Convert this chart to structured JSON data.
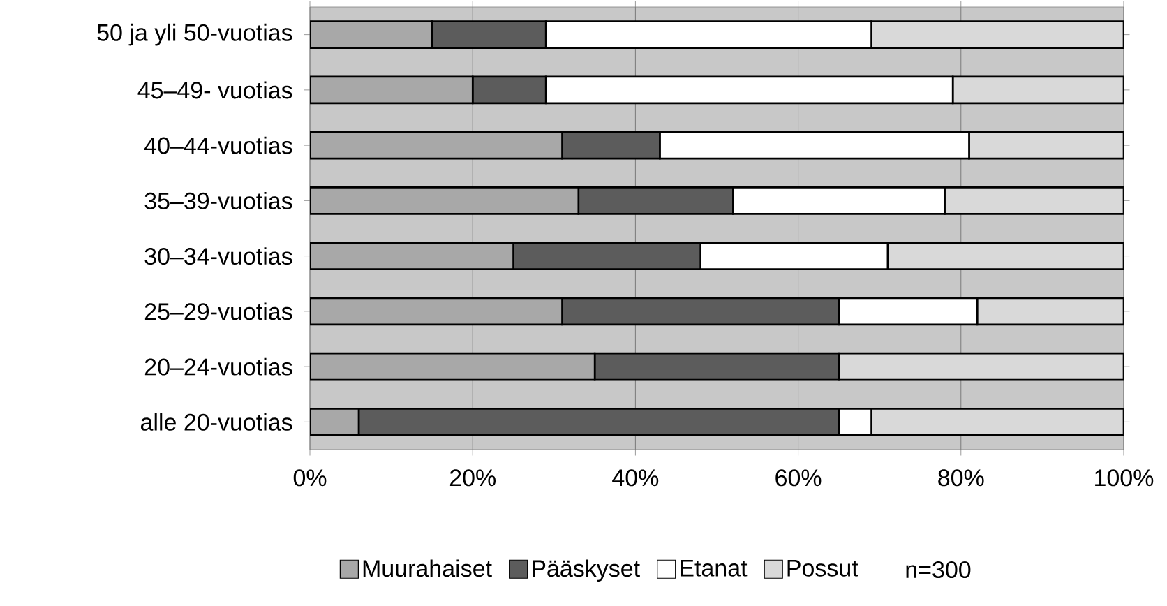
{
  "chart_data": {
    "type": "bar",
    "orientation": "horizontal",
    "stacked": true,
    "categories": [
      "50 ja yli 50-vuotias",
      "45–49- vuotias",
      "40–44-vuotias",
      "35–39-vuotias",
      "30–34-vuotias",
      "25–29-vuotias",
      "20–24-vuotias",
      "alle 20-vuotias"
    ],
    "series": [
      {
        "name": "Muurahaiset",
        "color": "#a8a8a8",
        "values": [
          15,
          20,
          31,
          33,
          25,
          31,
          35,
          6
        ]
      },
      {
        "name": "Pääskyset",
        "color": "#5c5c5c",
        "values": [
          14,
          9,
          12,
          19,
          23,
          34,
          30,
          59
        ]
      },
      {
        "name": "Etanat",
        "color": "#ffffff",
        "values": [
          40,
          50,
          38,
          26,
          23,
          17,
          0,
          4
        ]
      },
      {
        "name": "Possut",
        "color": "#d9d9d9",
        "values": [
          31,
          21,
          19,
          22,
          29,
          18,
          35,
          31
        ]
      }
    ],
    "xlim": [
      0,
      100
    ],
    "xticks": [
      {
        "value": 0,
        "label": "0%"
      },
      {
        "value": 20,
        "label": "20%"
      },
      {
        "value": 40,
        "label": "40%"
      },
      {
        "value": 60,
        "label": "60%"
      },
      {
        "value": 80,
        "label": "80%"
      },
      {
        "value": 100,
        "label": "100%"
      }
    ],
    "grid": "x",
    "legend": "bottom",
    "annotations": [
      "n=300"
    ]
  }
}
